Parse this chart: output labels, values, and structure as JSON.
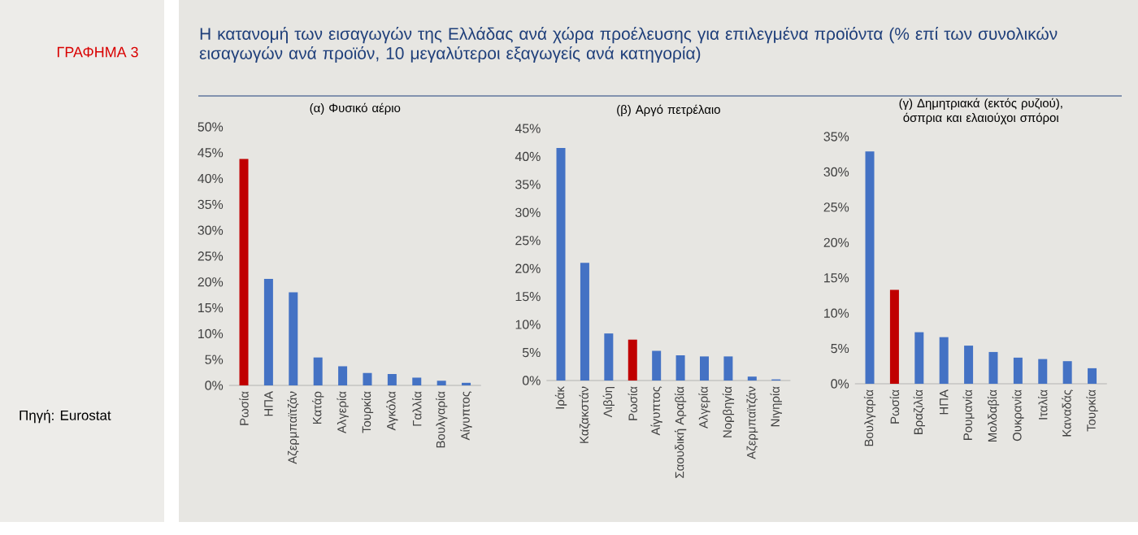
{
  "chart_data": [
    {
      "type": "bar",
      "title": "(α) Φυσικό αέριο",
      "annotations": [
        "ΓΡΑΦΗΜΑ 3",
        "Η κατανομή των εισαγωγών της Ελλάδας ανά χώρα προέλευσης για επιλεγμένα προϊόντα (% επί των συνολικών εισαγωγών ανά προϊόν, 10 μεγαλύτεροι εξαγωγείς ανά κατηγορία)",
        "Πηγή: Eurostat"
      ],
      "categories": [
        "Ρωσία",
        "ΗΠΑ",
        "Αζερμπαϊτζάν",
        "Κατάρ",
        "Αλγερία",
        "Τουρκία",
        "Αγκόλα",
        "Γαλλία",
        "Βουλγαρία",
        "Αίγυπτος"
      ],
      "values": [
        43.8,
        20.6,
        18.0,
        5.4,
        3.7,
        2.4,
        2.2,
        1.5,
        0.9,
        0.5
      ],
      "colors": [
        "#c00000",
        "#4472c4",
        "#4472c4",
        "#4472c4",
        "#4472c4",
        "#4472c4",
        "#4472c4",
        "#4472c4",
        "#4472c4",
        "#4472c4"
      ],
      "ylim": [
        0,
        50
      ],
      "yticks": [
        {
          "value": 0,
          "label": "0%"
        },
        {
          "value": 5,
          "label": "5%"
        },
        {
          "value": 10,
          "label": "10%"
        },
        {
          "value": 15,
          "label": "15%"
        },
        {
          "value": 20,
          "label": "20%"
        },
        {
          "value": 25,
          "label": "25%"
        },
        {
          "value": 30,
          "label": "30%"
        },
        {
          "value": 35,
          "label": "35%"
        },
        {
          "value": 40,
          "label": "40%"
        },
        {
          "value": 45,
          "label": "45%"
        },
        {
          "value": 50,
          "label": "50%"
        }
      ]
    },
    {
      "type": "bar",
      "title": "(β) Αργό πετρέλαιο",
      "categories": [
        "Ιράκ",
        "Καζακστάν",
        "Λιβύη",
        "Ρωσία",
        "Αίγυπτος",
        "Σαουδική Αραβία",
        "Αλγερία",
        "Νορβηγία",
        "Αζερμπαϊτζάν",
        "Νιγηρία"
      ],
      "values": [
        41.5,
        21.0,
        8.4,
        7.3,
        5.3,
        4.5,
        4.3,
        4.3,
        0.7,
        0.2
      ],
      "colors": [
        "#4472c4",
        "#4472c4",
        "#4472c4",
        "#c00000",
        "#4472c4",
        "#4472c4",
        "#4472c4",
        "#4472c4",
        "#4472c4",
        "#4472c4"
      ],
      "ylim": [
        0,
        45
      ],
      "yticks": [
        {
          "value": 0,
          "label": "0%"
        },
        {
          "value": 5,
          "label": "5%"
        },
        {
          "value": 10,
          "label": "10%"
        },
        {
          "value": 15,
          "label": "15%"
        },
        {
          "value": 20,
          "label": "20%"
        },
        {
          "value": 25,
          "label": "25%"
        },
        {
          "value": 30,
          "label": "30%"
        },
        {
          "value": 35,
          "label": "35%"
        },
        {
          "value": 40,
          "label": "40%"
        },
        {
          "value": 45,
          "label": "45%"
        }
      ]
    },
    {
      "type": "bar",
      "title": "(γ) Δημητριακά (εκτός ρυζιού), όσπρια και ελαιούχοι σπόροι",
      "categories": [
        "Βουλγαρία",
        "Ρωσία",
        "Βραζιλία",
        "ΗΠΑ",
        "Ρουμανία",
        "Μολδαβία",
        "Ουκρανία",
        "Ιταλία",
        "Καναδάς",
        "Τουρκία"
      ],
      "values": [
        32.9,
        13.3,
        7.3,
        6.6,
        5.4,
        4.5,
        3.7,
        3.5,
        3.2,
        2.2
      ],
      "colors": [
        "#4472c4",
        "#c00000",
        "#4472c4",
        "#4472c4",
        "#4472c4",
        "#4472c4",
        "#4472c4",
        "#4472c4",
        "#4472c4",
        "#4472c4"
      ],
      "ylim": [
        0,
        35
      ],
      "yticks": [
        {
          "value": 0,
          "label": "0%"
        },
        {
          "value": 5,
          "label": "5%"
        },
        {
          "value": 10,
          "label": "10%"
        },
        {
          "value": 15,
          "label": "15%"
        },
        {
          "value": 20,
          "label": "20%"
        },
        {
          "value": 25,
          "label": "25%"
        },
        {
          "value": 30,
          "label": "30%"
        },
        {
          "value": 35,
          "label": "35%"
        }
      ]
    }
  ]
}
